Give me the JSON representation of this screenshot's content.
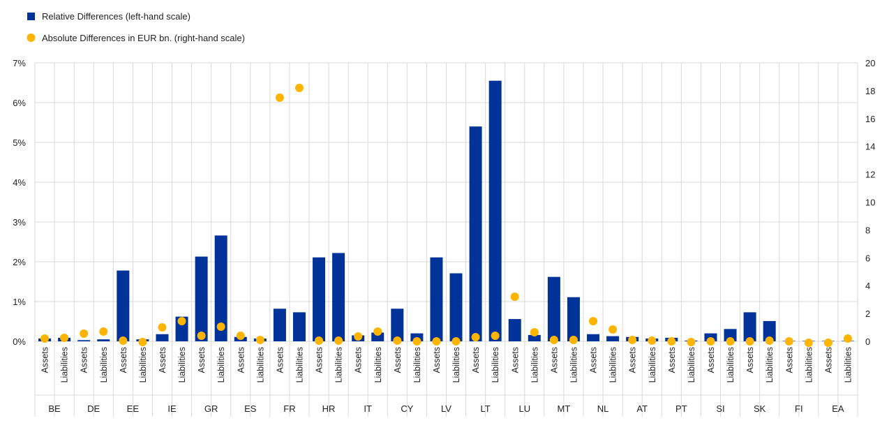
{
  "chart_data": {
    "type": "bar",
    "legend": {
      "placement": "top-left",
      "entries": [
        {
          "label": "Relative Differences (left-hand scale)",
          "color": "#003399",
          "marker": "square"
        },
        {
          "label": "Absolute Differences in EUR bn. (right-hand scale)",
          "color": "#FFB400",
          "marker": "circle"
        }
      ]
    },
    "groups": [
      "BE",
      "DE",
      "EE",
      "IE",
      "GR",
      "ES",
      "FR",
      "HR",
      "IT",
      "CY",
      "LV",
      "LT",
      "LU",
      "MT",
      "NL",
      "AT",
      "PT",
      "SI",
      "SK",
      "FI",
      "EA"
    ],
    "subcategories": [
      "Assets",
      "Liabilities"
    ],
    "series": [
      {
        "name": "Relative Differences (left-hand scale)",
        "type": "bar",
        "axis": "left",
        "color": "#003399",
        "values": [
          0.07,
          0.09,
          0.03,
          0.05,
          1.78,
          0.05,
          0.18,
          0.62,
          2.13,
          2.66,
          0.11,
          0.07,
          0.82,
          0.73,
          2.11,
          2.22,
          0.15,
          0.22,
          0.82,
          0.2,
          2.11,
          1.71,
          5.4,
          6.55,
          0.56,
          0.16,
          1.62,
          1.11,
          0.18,
          0.13,
          0.11,
          0.07,
          0.09,
          0.02,
          0.2,
          0.31,
          0.73,
          0.51,
          0.01,
          0.01,
          0.01,
          0.01
        ]
      },
      {
        "name": "Absolute Differences in EUR bn. (right-hand scale)",
        "type": "scatter",
        "axis": "right",
        "color": "#FFB400",
        "values": [
          0.2,
          0.25,
          0.55,
          0.7,
          0.05,
          -0.05,
          1.0,
          1.45,
          0.4,
          1.05,
          0.4,
          0.1,
          17.5,
          18.2,
          0.05,
          0.05,
          0.35,
          0.7,
          0.05,
          0.0,
          0.0,
          0.0,
          0.3,
          0.4,
          3.2,
          0.65,
          0.1,
          0.1,
          1.45,
          0.85,
          0.1,
          0.05,
          0.0,
          -0.05,
          0.0,
          0.0,
          0.0,
          0.05,
          0.0,
          -0.1,
          -0.1,
          0.2
        ]
      }
    ],
    "y_left": {
      "ticks": [
        "0%",
        "1%",
        "2%",
        "3%",
        "4%",
        "5%",
        "6%",
        "7%"
      ],
      "range": [
        0,
        7
      ]
    },
    "y_right": {
      "ticks": [
        "0",
        "2",
        "4",
        "6",
        "8",
        "10",
        "12",
        "14",
        "16",
        "18",
        "20"
      ],
      "range": [
        0,
        20
      ]
    },
    "grid": true,
    "title": "",
    "xlabel": "",
    "ylabel": ""
  }
}
